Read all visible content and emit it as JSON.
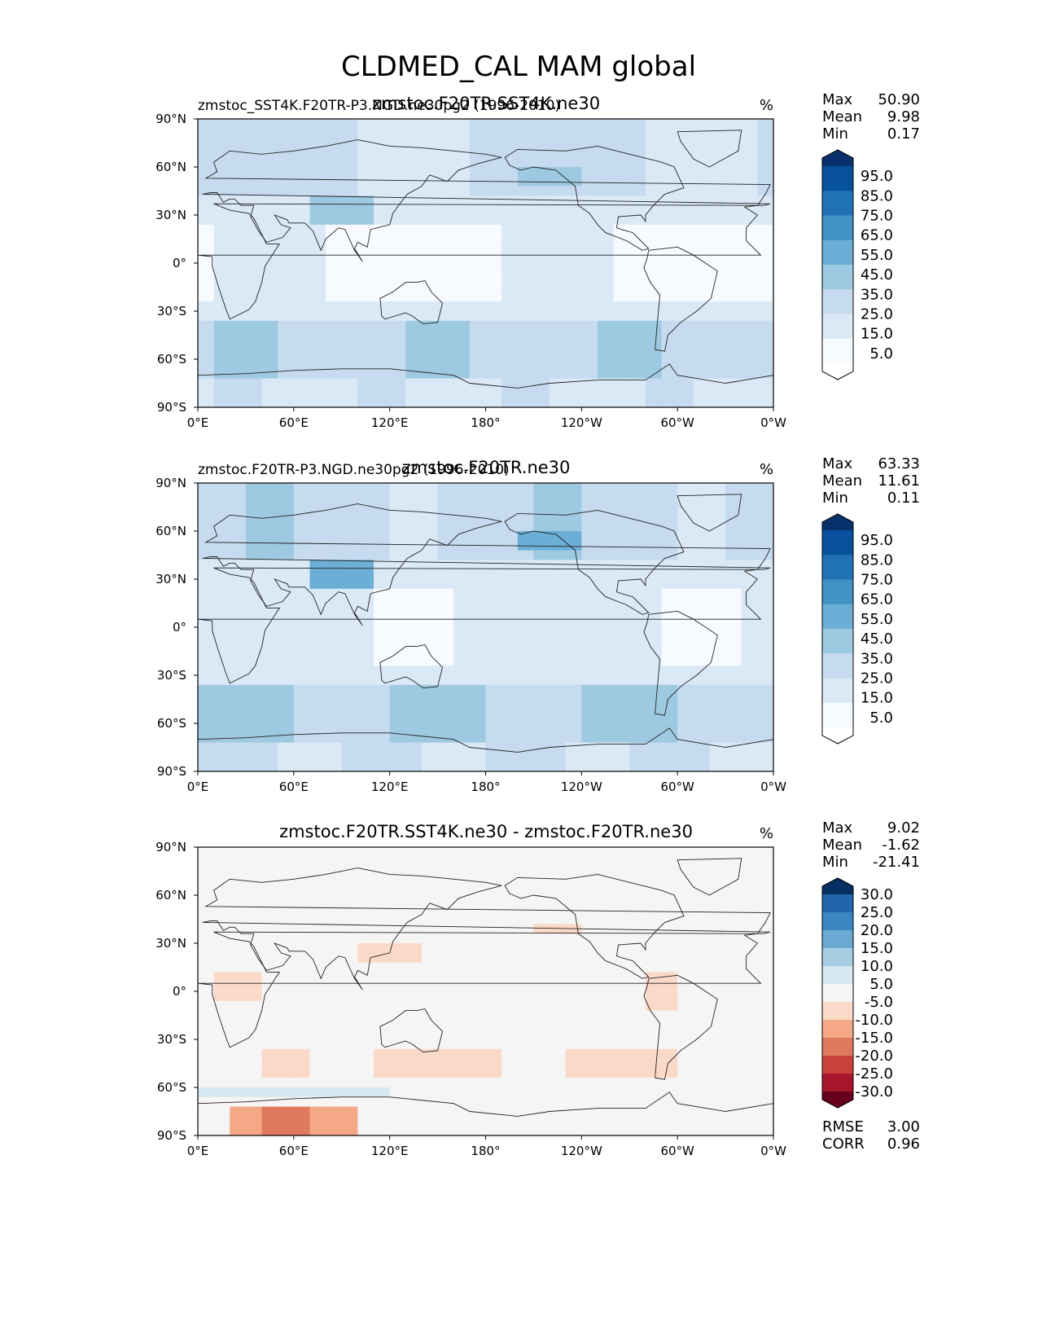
{
  "figure_title": "CLDMED_CAL MAM global",
  "chart_data": [
    {
      "type": "heatmap",
      "panel": "test",
      "title": "zmstoc.F20TR.SST4K.ne30",
      "subtitle_left": "zmstoc_SST4K.F20TR-P3.NGD.ne30pg2 (1996-2010)",
      "units": "%",
      "stats": [
        {
          "label": "Max",
          "value": "50.90"
        },
        {
          "label": "Mean",
          "value": "9.98"
        },
        {
          "label": "Min",
          "value": "0.17"
        }
      ],
      "colorbar_ticks": [
        "95.0",
        "85.0",
        "75.0",
        "65.0",
        "55.0",
        "45.0",
        "35.0",
        "25.0",
        "15.0",
        "5.0"
      ],
      "colorbar_colors": [
        "#08306b",
        "#08519c",
        "#2171b5",
        "#4292c6",
        "#6baed6",
        "#9ecae1",
        "#c6dbef",
        "#dbe9f6",
        "#f7fbff"
      ],
      "xticks": [
        "0°E",
        "60°E",
        "120°E",
        "180°",
        "120°W",
        "60°W",
        "0°W"
      ],
      "yticks": [
        "90°N",
        "60°N",
        "30°N",
        "0°",
        "30°S",
        "60°S",
        "90°S"
      ],
      "xlim": [
        0,
        360
      ],
      "ylim": [
        -90,
        90
      ]
    },
    {
      "type": "heatmap",
      "panel": "reference",
      "title": "zmstoc.F20TR.ne30",
      "subtitle_left": "zmstoc.F20TR-P3.NGD.ne30pg2 (1996-2010)",
      "units": "%",
      "stats": [
        {
          "label": "Max",
          "value": "63.33"
        },
        {
          "label": "Mean",
          "value": "11.61"
        },
        {
          "label": "Min",
          "value": "0.11"
        }
      ],
      "colorbar_ticks": [
        "95.0",
        "85.0",
        "75.0",
        "65.0",
        "55.0",
        "45.0",
        "35.0",
        "25.0",
        "15.0",
        "5.0"
      ],
      "colorbar_colors": [
        "#08306b",
        "#08519c",
        "#2171b5",
        "#4292c6",
        "#6baed6",
        "#9ecae1",
        "#c6dbef",
        "#dbe9f6",
        "#f7fbff"
      ],
      "xticks": [
        "0°E",
        "60°E",
        "120°E",
        "180°",
        "120°W",
        "60°W",
        "0°W"
      ],
      "yticks": [
        "90°N",
        "60°N",
        "30°N",
        "0°",
        "30°S",
        "60°S",
        "90°S"
      ],
      "xlim": [
        0,
        360
      ],
      "ylim": [
        -90,
        90
      ]
    },
    {
      "type": "heatmap",
      "panel": "difference",
      "title": "zmstoc.F20TR.SST4K.ne30 - zmstoc.F20TR.ne30",
      "subtitle_left": "",
      "units": "%",
      "stats": [
        {
          "label": "Max",
          "value": "9.02"
        },
        {
          "label": "Mean",
          "value": "-1.62"
        },
        {
          "label": "Min",
          "value": "-21.41"
        }
      ],
      "colorbar_ticks": [
        "30.0",
        "25.0",
        "20.0",
        "15.0",
        "10.0",
        "5.0",
        "-5.0",
        "-10.0",
        "-15.0",
        "-20.0",
        "-25.0",
        "-30.0"
      ],
      "colorbar_colors": [
        "#2166ac",
        "#3a86c0",
        "#6aa9d2",
        "#a6cee3",
        "#d6e8f2",
        "#f5f5f5",
        "#fbd9c8",
        "#f4a886",
        "#e07a5f",
        "#c9423a",
        "#a8152b"
      ],
      "extend_top_color": "#053061",
      "extend_bottom_color": "#67001f",
      "footer_stats": [
        {
          "label": "RMSE",
          "value": "3.00"
        },
        {
          "label": "CORR",
          "value": "0.96"
        }
      ],
      "xticks": [
        "0°E",
        "60°E",
        "120°E",
        "180°",
        "120°W",
        "60°W",
        "0°W"
      ],
      "yticks": [
        "90°N",
        "60°N",
        "30°N",
        "0°",
        "30°S",
        "60°S",
        "90°S"
      ],
      "xlim": [
        0,
        360
      ],
      "ylim": [
        -90,
        90
      ]
    }
  ]
}
